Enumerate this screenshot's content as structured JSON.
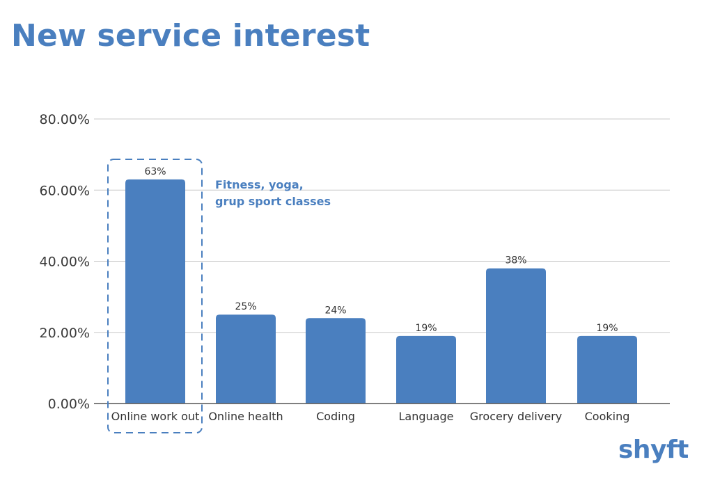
{
  "chart_data": {
    "type": "bar",
    "title": "New service interest",
    "categories": [
      "Online work out",
      "Online health",
      "Coding",
      "Language",
      "Grocery delivery",
      "Cooking"
    ],
    "values": [
      63,
      25,
      24,
      19,
      38,
      19
    ],
    "data_labels": [
      "63%",
      "25%",
      "24%",
      "19%",
      "38%",
      "19%"
    ],
    "y_tick_labels": [
      "0.00%",
      "20.00%",
      "40.00%",
      "60.00%",
      "80.00%"
    ],
    "y_ticks": [
      0,
      20,
      40,
      60,
      80
    ],
    "ylim": [
      0,
      80
    ],
    "xlabel": "",
    "ylabel": "",
    "grid": true,
    "highlight_index": 0,
    "annotation": {
      "line1": "Fitness, yoga,",
      "line2": "grup sport classes"
    }
  },
  "brand": "shyft",
  "colors": {
    "bar": "#4a7fbf",
    "accent": "#4a7fbf",
    "grid": "#c8c8c8",
    "axis": "#555555"
  }
}
